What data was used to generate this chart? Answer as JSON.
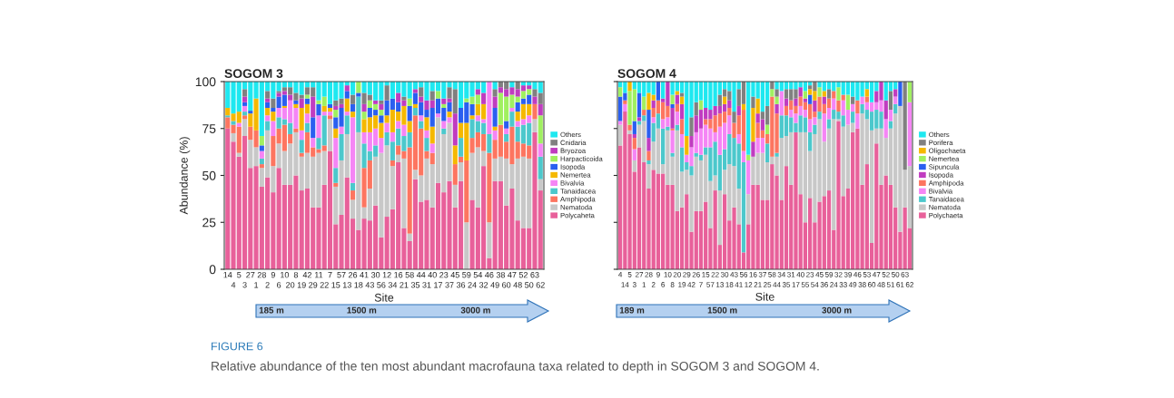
{
  "chart_data": [
    {
      "type": "bar",
      "stacked": true,
      "title": "SOGOM 3",
      "xlabel": "Site",
      "ylabel": "Abundance (%)",
      "ylim": [
        0,
        100
      ],
      "yticks": [
        0,
        25,
        50,
        75,
        100
      ],
      "grid": false,
      "legend": "right",
      "categories": [
        "14",
        "4",
        "5",
        "3",
        "27",
        "1",
        "28",
        "2",
        "9",
        "6",
        "10",
        "20",
        "8",
        "19",
        "42",
        "29",
        "11",
        "22",
        "7",
        "15",
        "57",
        "13",
        "26",
        "18",
        "41",
        "43",
        "30",
        "56",
        "12",
        "34",
        "16",
        "21",
        "58",
        "35",
        "44",
        "31",
        "40",
        "17",
        "23",
        "37",
        "45",
        "36",
        "59",
        "24",
        "54",
        "32",
        "46",
        "49",
        "38",
        "60",
        "47",
        "48",
        "52",
        "50",
        "63",
        "62"
      ],
      "annotations": [
        "185 m",
        "1500 m",
        "3000 m",
        "FIGURE 6",
        "Relative abundance of the ten most abundant macrofauna taxa related to depth in SOGOM 3 and SOGOM 4."
      ],
      "series": [
        {
          "name": "Polycaheta",
          "color": "#e8609a",
          "values": [
            75,
            68,
            60,
            71,
            54,
            55,
            44,
            49,
            41,
            54,
            45,
            45,
            50,
            42,
            43,
            33,
            33,
            45,
            63,
            24,
            29,
            49,
            27,
            21,
            27,
            26,
            34,
            17,
            28,
            32,
            57,
            22,
            15,
            48,
            36,
            37,
            33,
            46,
            41,
            47,
            33,
            47,
            0,
            37,
            33,
            55,
            6,
            47,
            47,
            34,
            43,
            26,
            22,
            22,
            73,
            42
          ]
        },
        {
          "name": "Nematoda",
          "color": "#c8c8c8",
          "values": [
            0,
            4.5,
            2,
            9,
            15,
            10,
            10,
            25,
            14,
            13,
            18,
            22,
            23,
            18,
            19,
            27,
            29,
            18,
            17,
            20,
            29,
            23,
            10,
            52,
            6,
            17,
            26,
            45,
            38,
            23,
            4,
            37,
            4,
            5,
            14,
            22,
            23,
            35,
            31,
            31,
            12,
            10,
            25,
            25,
            32,
            8,
            19,
            12,
            13,
            25,
            13,
            33,
            38,
            37,
            7,
            6
          ]
        },
        {
          "name": "Amphipoda",
          "color": "#fd7560",
          "values": [
            6,
            4.5,
            14,
            2,
            7,
            9,
            2,
            0,
            16,
            8,
            14,
            5,
            2,
            2,
            11,
            5,
            2,
            3,
            2,
            2,
            0,
            0,
            5,
            0,
            21,
            15,
            0,
            0,
            0,
            3,
            5,
            4,
            46,
            29,
            25,
            4,
            6,
            0,
            0,
            0,
            11,
            3,
            33,
            8,
            8,
            9,
            37,
            10,
            17,
            9,
            20,
            9,
            7,
            7,
            8,
            0
          ]
        },
        {
          "name": "Tanaidacea",
          "color": "#4cc8cc",
          "values": [
            1,
            2,
            0,
            2,
            0,
            0,
            3,
            5,
            0,
            6,
            3,
            6,
            0,
            7,
            5,
            0,
            6,
            16,
            0,
            8,
            14,
            10,
            4,
            19,
            13,
            5,
            6,
            0,
            7,
            10,
            9,
            8,
            8,
            4,
            4,
            7,
            0,
            0,
            3,
            0,
            0,
            10,
            0,
            10,
            6,
            6,
            10,
            0,
            0,
            4,
            8,
            8,
            10,
            12,
            0,
            12
          ]
        },
        {
          "name": "Bivalvia",
          "color": "#f585f5",
          "values": [
            0,
            0,
            2,
            3,
            0,
            0,
            4,
            3,
            8,
            5,
            6,
            12,
            11,
            5,
            5,
            5,
            12,
            2,
            2,
            16,
            4,
            2,
            35,
            0,
            6,
            10,
            9,
            8,
            5,
            5,
            4,
            6,
            0,
            0,
            3,
            4,
            5,
            2,
            4,
            3,
            0,
            0,
            0,
            0,
            3,
            2,
            28,
            5,
            0,
            3,
            2,
            3,
            3,
            4,
            0,
            7
          ]
        },
        {
          "name": "Nemertea",
          "color": "#f5b800",
          "values": [
            4,
            4,
            6,
            0,
            7,
            17,
            0,
            4,
            5,
            0,
            1,
            0,
            2,
            12,
            5,
            0,
            0,
            3,
            2,
            5,
            0,
            7,
            3,
            0,
            7,
            8,
            7,
            8,
            4,
            12,
            5,
            10,
            6,
            2,
            0,
            7,
            9,
            0,
            0,
            3,
            10,
            8,
            20,
            2,
            6,
            8,
            0,
            2,
            0,
            0,
            0,
            5,
            8,
            6,
            0,
            0
          ]
        },
        {
          "name": "Isopoda",
          "color": "#2a5ff0",
          "values": [
            0,
            0,
            0,
            2,
            1.5,
            0,
            3,
            3,
            2,
            6,
            6,
            0,
            2,
            0,
            3,
            11,
            6,
            0,
            2,
            6,
            10,
            4,
            4,
            2,
            0,
            5,
            3,
            4,
            8,
            6,
            5,
            0,
            8,
            6,
            7,
            4,
            10,
            8,
            7,
            5,
            0,
            8,
            11,
            6,
            0,
            0,
            0,
            10,
            0,
            4,
            0,
            5,
            3,
            5,
            0,
            0
          ]
        },
        {
          "name": "Harpacticoida",
          "color": "#a0f060",
          "values": [
            0,
            0,
            0,
            0,
            0,
            0,
            5,
            0,
            0,
            0,
            0,
            0,
            0,
            0,
            2,
            0,
            2,
            5,
            0,
            4,
            0,
            0,
            0,
            6,
            4,
            4,
            3,
            3,
            0,
            0,
            0,
            0,
            4,
            0,
            0,
            0,
            0,
            4,
            2,
            0,
            0,
            0,
            2,
            4,
            5,
            0,
            0,
            0,
            17,
            13,
            7,
            3,
            4,
            3,
            0,
            15
          ]
        },
        {
          "name": "Bryozoa",
          "color": "#c03cc0",
          "values": [
            0,
            0,
            0,
            3,
            0,
            0,
            0,
            2,
            0,
            2,
            2,
            3,
            0,
            5,
            0,
            11,
            0,
            0,
            0,
            2,
            2,
            3,
            0,
            0,
            4,
            0,
            2,
            3,
            0,
            0,
            5,
            3,
            0,
            2,
            3,
            5,
            4,
            0,
            3,
            2,
            17,
            0,
            0,
            0,
            3,
            6,
            0,
            6,
            3,
            4,
            4,
            4,
            3,
            2,
            4,
            6
          ]
        },
        {
          "name": "Cnidaria",
          "color": "#808080",
          "values": [
            0,
            0,
            0,
            4,
            0,
            0,
            0,
            4,
            5,
            1,
            2,
            4,
            4,
            2,
            4,
            5,
            0,
            0,
            0,
            3,
            3,
            0,
            5,
            0,
            6,
            3,
            0,
            2,
            8,
            0,
            0,
            2,
            0,
            0,
            5,
            0,
            5,
            0,
            0,
            6,
            13,
            0,
            0,
            0,
            0,
            0,
            0,
            4,
            3,
            4,
            0,
            4,
            0,
            0,
            4,
            6
          ]
        },
        {
          "name": "Others",
          "color": "#1ee8f0",
          "values": [
            14,
            17,
            16,
            4,
            15.5,
            9,
            29,
            5,
            9,
            5,
            3,
            3,
            6,
            7,
            3,
            3,
            10,
            8,
            12,
            10,
            9,
            2,
            7,
            0,
            6,
            7,
            10,
            10,
            2,
            9,
            6,
            8,
            9,
            4,
            3,
            10,
            5,
            5,
            9,
            3,
            4,
            14,
            9,
            8,
            4,
            6,
            0,
            4,
            0,
            0,
            3,
            0,
            2,
            2,
            4,
            6
          ]
        }
      ]
    },
    {
      "type": "bar",
      "stacked": true,
      "title": "SOGOM 4",
      "xlabel": "Site",
      "ylim": [
        0,
        100
      ],
      "yticks": [
        0,
        25,
        50,
        75,
        100
      ],
      "grid": false,
      "legend": "right",
      "tick_labels": "x",
      "categories": [
        "4",
        "14",
        "5",
        "3",
        "27",
        "1",
        "28",
        "2",
        "9",
        "6",
        "10",
        "8",
        "20",
        "19",
        "29",
        "42",
        "26",
        "7",
        "15",
        "57",
        "22",
        "13",
        "30",
        "18",
        "43",
        "41",
        "56",
        "12",
        "16",
        "21",
        "37",
        "25",
        "58",
        "44",
        "34",
        "35",
        "31",
        "17",
        "40",
        "55",
        "23",
        "54",
        "45",
        "36",
        "59",
        "24",
        "32",
        "33",
        "39",
        "49",
        "46",
        "38",
        "53",
        "60",
        "47",
        "48",
        "52",
        "51",
        "50",
        "61",
        "63",
        "62"
      ],
      "annotations": [
        "189 m",
        "1500 m",
        "3000 m"
      ],
      "series": [
        {
          "name": "Polychaeta",
          "color": "#e8609a",
          "values": [
            66,
            84,
            72,
            52,
            65,
            57,
            43,
            53,
            51,
            51,
            45,
            45,
            31,
            33,
            40,
            20,
            31,
            31,
            36,
            22,
            42,
            13,
            40,
            26,
            33,
            24,
            9,
            24,
            45,
            45,
            37,
            37,
            56,
            50,
            37,
            55,
            45,
            73,
            40,
            25,
            38,
            25,
            36,
            39,
            42,
            21,
            79,
            39,
            43,
            73,
            75,
            45,
            56,
            14,
            67,
            45,
            50,
            45,
            33,
            20,
            33,
            22
          ]
        },
        {
          "name": "Nematoda",
          "color": "#c8c8c8",
          "values": [
            11,
            0,
            2,
            6,
            12,
            22,
            13,
            15,
            24,
            5,
            29,
            15,
            43,
            19,
            13,
            30,
            29,
            27,
            25,
            25,
            8,
            29,
            13,
            30,
            22,
            19,
            0,
            16,
            15,
            17,
            25,
            20,
            4,
            10,
            33,
            16,
            28,
            0,
            33,
            48,
            25,
            47,
            44,
            29,
            33,
            59,
            1,
            37,
            34,
            5,
            0,
            38,
            24,
            60,
            8,
            30,
            20,
            30,
            50,
            67,
            20,
            33
          ]
        },
        {
          "name": "Tanaidacea",
          "color": "#4cc8cc",
          "values": [
            0,
            0,
            0,
            0,
            2,
            3,
            2,
            10,
            8,
            19,
            2,
            2,
            3,
            13,
            4,
            5,
            2,
            3,
            4,
            18,
            18,
            19,
            11,
            16,
            15,
            24,
            48,
            0,
            0,
            0,
            0,
            10,
            0,
            2,
            12,
            11,
            8,
            5,
            9,
            8,
            10,
            5,
            4,
            0,
            5,
            5,
            4,
            6,
            0,
            6,
            0,
            5,
            5,
            10,
            10,
            9,
            0,
            4,
            5,
            0,
            0,
            0
          ]
        },
        {
          "name": "Bivalvia",
          "color": "#f585f5",
          "values": [
            2,
            4,
            0,
            6,
            0,
            0,
            0,
            3,
            0,
            5,
            5,
            12,
            7,
            7,
            4,
            10,
            11,
            14,
            12,
            10,
            5,
            15,
            14,
            10,
            0,
            5,
            6,
            18,
            0,
            8,
            8,
            0,
            0,
            0,
            13,
            0,
            4,
            5,
            5,
            4,
            7,
            4,
            0,
            15,
            6,
            6,
            0,
            8,
            8,
            4,
            8,
            4,
            4,
            5,
            4,
            6,
            10,
            6,
            4,
            0,
            0,
            34
          ]
        },
        {
          "name": "Amphipoda",
          "color": "#fd7560",
          "values": [
            0,
            2,
            3,
            6,
            0,
            3,
            5,
            5,
            7,
            9,
            6,
            1,
            4,
            8,
            0,
            0,
            0,
            0,
            3,
            5,
            9,
            7,
            6,
            4,
            8,
            10,
            22,
            0,
            0,
            8,
            4,
            5,
            32,
            21,
            0,
            5,
            5,
            4,
            5,
            4,
            8,
            3,
            8,
            5,
            5,
            4,
            6,
            3,
            0,
            0,
            7,
            0,
            3,
            0,
            0,
            0,
            0,
            0,
            0,
            0,
            0,
            0
          ]
        },
        {
          "name": "Isopoda",
          "color": "#c03cc0",
          "values": [
            0,
            0,
            0,
            2,
            2,
            0,
            7,
            4,
            0,
            2,
            13,
            11,
            5,
            8,
            0,
            6,
            9,
            10,
            6,
            5,
            5,
            4,
            4,
            4,
            0,
            5,
            0,
            0,
            8,
            5,
            6,
            0,
            0,
            5,
            0,
            4,
            0,
            4,
            5,
            2,
            0,
            6,
            0,
            4,
            0,
            0,
            0,
            0,
            0,
            0,
            0,
            0,
            0,
            0,
            6,
            10,
            10,
            0,
            4,
            0,
            0,
            0
          ]
        },
        {
          "name": "Sipuncula",
          "color": "#2a5ff0",
          "values": [
            13,
            4,
            0,
            7,
            13,
            0,
            15,
            0,
            10,
            0,
            0,
            2,
            0,
            0,
            0,
            0,
            0,
            0,
            0,
            0,
            0,
            0,
            0,
            0,
            0,
            0,
            0,
            0,
            0,
            0,
            0,
            0,
            0,
            0,
            0,
            0,
            0,
            0,
            0,
            0,
            5,
            0,
            0,
            0,
            0,
            0,
            0,
            0,
            0,
            0,
            0,
            0,
            0,
            0,
            0,
            0,
            0,
            0,
            0,
            13,
            0,
            0
          ]
        },
        {
          "name": "Nemertea",
          "color": "#a0f060",
          "values": [
            5,
            0,
            18,
            17,
            0,
            7,
            0,
            0,
            0,
            0,
            0,
            5,
            0,
            0,
            0,
            0,
            0,
            5,
            0,
            0,
            0,
            0,
            0,
            0,
            0,
            0,
            0,
            3,
            0,
            0,
            0,
            5,
            4,
            4,
            0,
            0,
            0,
            0,
            0,
            4,
            0,
            0,
            5,
            0,
            0,
            0,
            7,
            0,
            8,
            0,
            0,
            0,
            0,
            0,
            0,
            0,
            0,
            0,
            0,
            0,
            0,
            11
          ]
        },
        {
          "name": "Oligochaeta",
          "color": "#f5b800",
          "values": [
            0,
            0,
            5,
            0,
            0,
            0,
            9,
            3,
            0,
            0,
            0,
            0,
            2,
            4,
            10,
            0,
            0,
            0,
            0,
            0,
            0,
            0,
            4,
            0,
            0,
            0,
            3,
            0,
            18,
            8,
            0,
            0,
            0,
            0,
            0,
            0,
            0,
            0,
            0,
            0,
            3,
            5,
            0,
            3,
            0,
            0,
            0,
            0,
            0,
            0,
            0,
            0,
            4,
            0,
            0,
            0,
            0,
            0,
            0,
            0,
            0,
            0
          ]
        },
        {
          "name": "Porifera",
          "color": "#808080",
          "values": [
            0,
            0,
            0,
            0,
            0,
            0,
            0,
            0,
            0,
            0,
            0,
            0,
            0,
            2,
            0,
            10,
            7,
            0,
            0,
            0,
            0,
            6,
            4,
            5,
            6,
            9,
            12,
            0,
            6,
            0,
            4,
            10,
            4,
            4,
            0,
            5,
            6,
            5,
            0,
            0,
            2,
            5,
            0,
            0,
            5,
            0,
            0,
            0,
            0,
            4,
            0,
            0,
            0,
            0,
            0,
            0,
            0,
            10,
            0,
            0,
            47,
            0
          ]
        },
        {
          "name": "Others",
          "color": "#1ee8f0",
          "values": [
            3,
            6,
            0,
            4,
            6,
            8,
            6,
            7,
            0,
            9,
            0,
            7,
            5,
            6,
            29,
            19,
            11,
            10,
            14,
            15,
            13,
            7,
            4,
            5,
            16,
            4,
            0,
            39,
            8,
            9,
            16,
            13,
            0,
            4,
            5,
            4,
            4,
            4,
            3,
            5,
            2,
            0,
            3,
            5,
            4,
            5,
            3,
            7,
            7,
            8,
            10,
            8,
            4,
            11,
            5,
            0,
            10,
            5,
            4,
            0,
            0,
            0
          ]
        }
      ]
    }
  ]
}
